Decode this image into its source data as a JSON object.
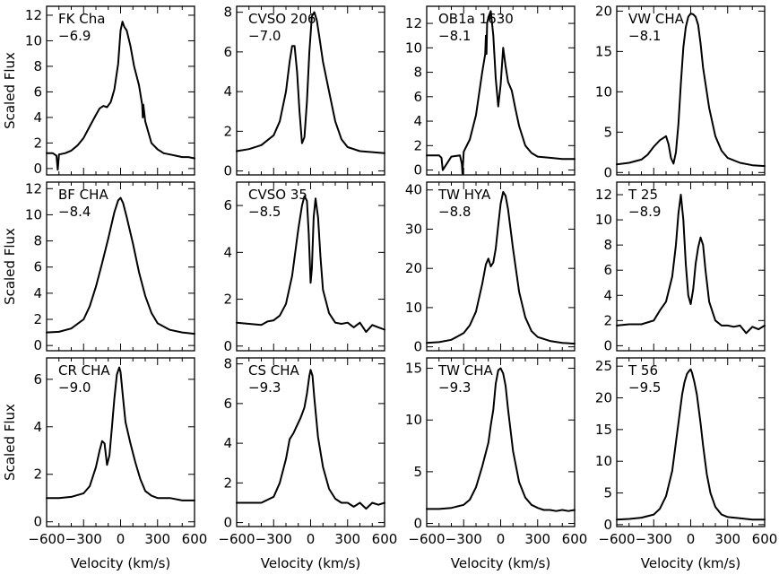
{
  "figure": {
    "ylabel": "Scaled Flux",
    "xlabel": "Velocity (km/s)"
  },
  "chart_data": [
    {
      "type": "line",
      "title": "FK Cha",
      "annotation": "-6.9",
      "xlim": [
        -600,
        600
      ],
      "ylim": [
        -0.5,
        12.7
      ],
      "xticks": [
        -600,
        -300,
        0,
        300,
        600
      ],
      "yticks": [
        0,
        2,
        4,
        6,
        8,
        10,
        12
      ],
      "x": [
        -600,
        -550,
        -520,
        -510,
        -500,
        -450,
        -400,
        -350,
        -300,
        -250,
        -200,
        -170,
        -140,
        -110,
        -80,
        -50,
        -20,
        0,
        15,
        30,
        50,
        80,
        110,
        150,
        175,
        180,
        185,
        200,
        250,
        300,
        350,
        400,
        450,
        500,
        550,
        600
      ],
      "y": [
        1.2,
        1.2,
        1.0,
        -0.1,
        1.1,
        1.2,
        1.4,
        1.8,
        2.4,
        3.3,
        4.2,
        4.7,
        4.9,
        4.8,
        5.2,
        6.2,
        8.2,
        10.8,
        11.5,
        11.1,
        10.8,
        9.6,
        8.0,
        6.5,
        5.0,
        4.0,
        5.0,
        3.7,
        2.0,
        1.5,
        1.2,
        1.1,
        1.0,
        0.9,
        0.9,
        0.8
      ]
    },
    {
      "type": "line",
      "title": "CVSO 206",
      "annotation": "-7.0",
      "xlim": [
        -600,
        600
      ],
      "ylim": [
        -0.2,
        8.3
      ],
      "xticks": [
        -600,
        -300,
        0,
        300,
        600
      ],
      "yticks": [
        0,
        2,
        4,
        6,
        8
      ],
      "x": [
        -600,
        -500,
        -400,
        -300,
        -250,
        -200,
        -170,
        -150,
        -130,
        -110,
        -90,
        -70,
        -50,
        -30,
        -10,
        10,
        30,
        50,
        70,
        100,
        150,
        200,
        250,
        300,
        400,
        500,
        600
      ],
      "y": [
        1.0,
        1.1,
        1.3,
        1.8,
        2.5,
        4.0,
        5.5,
        6.3,
        6.3,
        5.0,
        3.0,
        1.4,
        1.7,
        3.5,
        6.0,
        7.8,
        8.0,
        7.6,
        6.8,
        5.5,
        4.0,
        2.5,
        1.6,
        1.2,
        1.0,
        0.95,
        0.9
      ]
    },
    {
      "type": "line",
      "title": "OB1a 1630",
      "annotation": "-8.1",
      "xlim": [
        -600,
        600
      ],
      "ylim": [
        -0.4,
        13.4
      ],
      "xticks": [
        -600,
        -300,
        0,
        300,
        600
      ],
      "yticks": [
        0,
        2,
        4,
        6,
        8,
        10,
        12
      ],
      "x": [
        -600,
        -500,
        -480,
        -470,
        -400,
        -330,
        -315,
        -310,
        -300,
        -250,
        -200,
        -150,
        -125,
        -120,
        -115,
        -110,
        -100,
        -80,
        -60,
        -40,
        -20,
        0,
        20,
        40,
        60,
        90,
        120,
        150,
        200,
        250,
        300,
        400,
        500,
        600
      ],
      "y": [
        1.2,
        1.2,
        1.0,
        0.0,
        1.1,
        1.2,
        0.5,
        -0.3,
        1.5,
        2.5,
        4.5,
        8.0,
        9.5,
        11.0,
        9.5,
        12.0,
        12.5,
        13.0,
        11.0,
        7.5,
        5.2,
        7.0,
        10.0,
        8.5,
        7.2,
        6.5,
        5.0,
        3.6,
        2.0,
        1.4,
        1.1,
        1.0,
        0.9,
        0.9
      ]
    },
    {
      "type": "line",
      "title": "VW CHA",
      "annotation": "-8.1",
      "xlim": [
        -600,
        600
      ],
      "ylim": [
        -0.3,
        20.6
      ],
      "xticks": [
        -600,
        -300,
        0,
        300,
        600
      ],
      "yticks": [
        0,
        5,
        10,
        15,
        20
      ],
      "x": [
        -600,
        -500,
        -400,
        -350,
        -300,
        -250,
        -200,
        -180,
        -160,
        -140,
        -120,
        -100,
        -80,
        -60,
        -40,
        -20,
        0,
        20,
        40,
        60,
        80,
        100,
        150,
        200,
        250,
        300,
        400,
        500,
        600
      ],
      "y": [
        1.0,
        1.2,
        1.6,
        2.2,
        3.2,
        4.0,
        4.5,
        3.5,
        1.8,
        1.1,
        2.5,
        6.0,
        11.0,
        15.5,
        18.0,
        19.3,
        19.7,
        19.6,
        19.3,
        18.3,
        16.0,
        13.0,
        8.0,
        4.5,
        2.7,
        1.8,
        1.2,
        0.9,
        0.8
      ]
    },
    {
      "type": "line",
      "title": "BF CHA",
      "annotation": "-8.4",
      "xlim": [
        -600,
        600
      ],
      "ylim": [
        -0.4,
        12.5
      ],
      "xticks": [
        -600,
        -300,
        0,
        300,
        600
      ],
      "yticks": [
        0,
        2,
        4,
        6,
        8,
        10,
        12
      ],
      "x": [
        -600,
        -500,
        -400,
        -300,
        -250,
        -200,
        -150,
        -100,
        -50,
        -20,
        0,
        20,
        50,
        100,
        150,
        200,
        250,
        300,
        400,
        500,
        600
      ],
      "y": [
        1.0,
        1.05,
        1.3,
        2.0,
        3.0,
        4.5,
        6.3,
        8.2,
        10.2,
        11.1,
        11.3,
        10.9,
        9.8,
        7.8,
        5.6,
        3.8,
        2.5,
        1.7,
        1.2,
        1.0,
        0.9
      ]
    },
    {
      "type": "line",
      "title": "CVSO 35",
      "annotation": "-8.5",
      "xlim": [
        -600,
        600
      ],
      "ylim": [
        -0.2,
        7.0
      ],
      "xticks": [
        -600,
        -300,
        0,
        300,
        600
      ],
      "yticks": [
        0,
        2,
        4,
        6
      ],
      "x": [
        -600,
        -500,
        -400,
        -350,
        -300,
        -250,
        -200,
        -150,
        -100,
        -70,
        -50,
        -30,
        -15,
        0,
        10,
        25,
        40,
        60,
        80,
        100,
        150,
        200,
        250,
        300,
        350,
        400,
        450,
        500,
        550,
        600
      ],
      "y": [
        1.0,
        0.95,
        0.9,
        1.05,
        1.1,
        1.3,
        1.8,
        3.0,
        5.0,
        6.0,
        6.4,
        6.2,
        4.8,
        2.7,
        3.3,
        5.5,
        6.3,
        5.5,
        3.8,
        2.4,
        1.4,
        1.0,
        0.95,
        1.0,
        0.8,
        1.0,
        0.6,
        0.9,
        0.8,
        0.7
      ]
    },
    {
      "type": "line",
      "title": "TW HYA",
      "annotation": "-8.8",
      "xlim": [
        -600,
        600
      ],
      "ylim": [
        -1.0,
        42.0
      ],
      "xticks": [
        -600,
        -300,
        0,
        300,
        600
      ],
      "yticks": [
        0,
        10,
        20,
        30,
        40
      ],
      "x": [
        -600,
        -500,
        -400,
        -300,
        -250,
        -200,
        -150,
        -120,
        -100,
        -80,
        -60,
        -40,
        -20,
        0,
        20,
        40,
        60,
        100,
        150,
        200,
        250,
        300,
        400,
        500,
        600
      ],
      "y": [
        1.0,
        1.2,
        1.8,
        3.5,
        5.5,
        9.0,
        16.0,
        21.0,
        22.5,
        20.5,
        21.5,
        25.0,
        31.0,
        36.5,
        39.5,
        38.5,
        35.0,
        25.0,
        14.0,
        7.5,
        4.0,
        2.5,
        1.5,
        1.0,
        0.8
      ]
    },
    {
      "type": "line",
      "title": "T 25",
      "annotation": "-8.9",
      "xlim": [
        -600,
        600
      ],
      "ylim": [
        -0.4,
        13.0
      ],
      "xticks": [
        -600,
        -300,
        0,
        300,
        600
      ],
      "yticks": [
        0,
        2,
        4,
        6,
        8,
        10,
        12
      ],
      "x": [
        -600,
        -500,
        -400,
        -300,
        -250,
        -200,
        -150,
        -120,
        -100,
        -80,
        -60,
        -40,
        -20,
        0,
        20,
        40,
        60,
        80,
        100,
        120,
        150,
        200,
        250,
        300,
        350,
        400,
        450,
        500,
        550,
        600
      ],
      "y": [
        1.6,
        1.7,
        1.7,
        2.0,
        2.8,
        3.5,
        5.5,
        8.0,
        10.5,
        12.0,
        10.0,
        6.5,
        4.0,
        3.3,
        4.5,
        6.5,
        7.8,
        8.6,
        8.0,
        6.0,
        3.5,
        2.0,
        1.6,
        1.6,
        1.5,
        1.6,
        1.0,
        1.5,
        1.3,
        1.6
      ]
    },
    {
      "type": "line",
      "title": "CR CHA",
      "annotation": "-9.0",
      "xlim": [
        -600,
        600
      ],
      "ylim": [
        -0.2,
        6.9
      ],
      "xticks": [
        -600,
        -300,
        0,
        300,
        600
      ],
      "yticks": [
        0,
        2,
        4,
        6
      ],
      "x": [
        -600,
        -500,
        -400,
        -300,
        -250,
        -200,
        -170,
        -150,
        -130,
        -110,
        -90,
        -70,
        -50,
        -30,
        -10,
        0,
        20,
        40,
        80,
        120,
        160,
        200,
        250,
        300,
        400,
        500,
        600
      ],
      "y": [
        1.0,
        1.0,
        1.05,
        1.2,
        1.5,
        2.3,
        3.0,
        3.4,
        3.3,
        2.4,
        2.8,
        4.0,
        5.2,
        6.2,
        6.5,
        6.3,
        5.2,
        4.2,
        3.3,
        2.5,
        1.8,
        1.3,
        1.1,
        1.0,
        1.0,
        0.9,
        0.9
      ]
    },
    {
      "type": "line",
      "title": "CS CHA",
      "annotation": "-9.3",
      "xlim": [
        -600,
        600
      ],
      "ylim": [
        -0.2,
        8.3
      ],
      "xticks": [
        -600,
        -300,
        0,
        300,
        600
      ],
      "yticks": [
        0,
        2,
        4,
        6,
        8
      ],
      "x": [
        -600,
        -500,
        -400,
        -300,
        -250,
        -200,
        -170,
        -140,
        -110,
        -80,
        -50,
        -30,
        -10,
        0,
        15,
        30,
        60,
        100,
        150,
        200,
        250,
        300,
        350,
        400,
        450,
        500,
        550,
        600
      ],
      "y": [
        1.0,
        1.0,
        1.0,
        1.3,
        2.0,
        3.2,
        4.2,
        4.5,
        4.9,
        5.3,
        5.8,
        6.5,
        7.4,
        7.7,
        7.4,
        6.3,
        4.3,
        2.8,
        1.7,
        1.2,
        1.0,
        1.0,
        0.8,
        1.0,
        0.7,
        1.0,
        0.9,
        1.0
      ]
    },
    {
      "type": "line",
      "title": "TW CHA",
      "annotation": "-9.3",
      "xlim": [
        -600,
        600
      ],
      "ylim": [
        -0.3,
        16.0
      ],
      "xticks": [
        -600,
        -300,
        0,
        300,
        600
      ],
      "yticks": [
        0,
        5,
        10,
        15
      ],
      "x": [
        -600,
        -500,
        -400,
        -300,
        -250,
        -200,
        -150,
        -100,
        -80,
        -60,
        -40,
        -20,
        0,
        20,
        40,
        60,
        100,
        150,
        200,
        250,
        300,
        350,
        400,
        450,
        500,
        550,
        600
      ],
      "y": [
        1.4,
        1.4,
        1.5,
        1.8,
        2.3,
        3.5,
        5.5,
        7.8,
        9.5,
        11.0,
        13.5,
        14.8,
        15.0,
        14.5,
        13.3,
        11.0,
        7.0,
        4.0,
        2.5,
        1.8,
        1.5,
        1.3,
        1.3,
        1.2,
        1.3,
        1.2,
        1.3
      ]
    },
    {
      "type": "line",
      "title": "T 56",
      "annotation": "-9.5",
      "xlim": [
        -600,
        600
      ],
      "ylim": [
        -0.3,
        26.3
      ],
      "xticks": [
        -600,
        -300,
        0,
        300,
        600
      ],
      "yticks": [
        0,
        5,
        10,
        15,
        20,
        25
      ],
      "x": [
        -600,
        -500,
        -400,
        -300,
        -250,
        -200,
        -150,
        -100,
        -70,
        -50,
        -30,
        -10,
        0,
        10,
        30,
        50,
        80,
        100,
        130,
        160,
        200,
        250,
        300,
        400,
        500,
        600
      ],
      "y": [
        0.8,
        0.9,
        1.1,
        1.6,
        2.5,
        4.5,
        8.5,
        16.0,
        20.5,
        22.5,
        23.8,
        24.3,
        24.5,
        24.0,
        22.5,
        20.5,
        16.0,
        12.5,
        8.0,
        5.0,
        2.8,
        1.6,
        1.2,
        1.0,
        0.8,
        0.8
      ]
    }
  ]
}
